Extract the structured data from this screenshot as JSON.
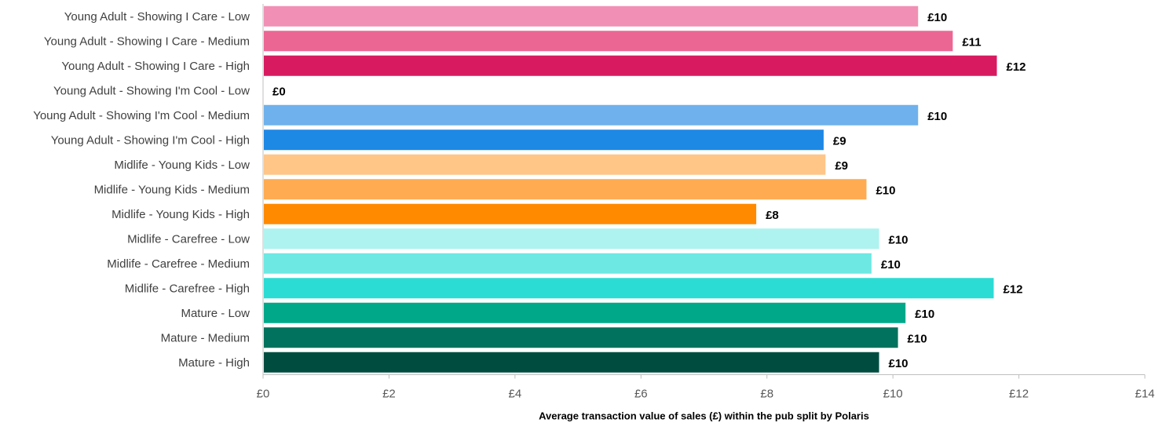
{
  "chart_data": {
    "type": "bar",
    "orientation": "horizontal",
    "categories": [
      "Young Adult - Showing I Care - Low",
      "Young Adult - Showing I Care - Medium",
      "Young Adult - Showing I Care - High",
      "Young Adult - Showing I'm Cool - Low",
      "Young Adult - Showing I'm Cool - Medium",
      "Young Adult - Showing I'm Cool - High",
      "Midlife - Young Kids - Low",
      "Midlife - Young Kids - Medium",
      "Midlife - Young Kids - High",
      "Midlife - Carefree - Low",
      "Midlife - Carefree - Medium",
      "Midlife - Carefree - High",
      "Mature - Low",
      "Mature - Medium",
      "Mature - High"
    ],
    "values": [
      10.4,
      10.95,
      11.65,
      0,
      10.4,
      8.9,
      8.93,
      9.58,
      7.83,
      9.78,
      9.66,
      11.6,
      10.2,
      10.08,
      9.78
    ],
    "data_labels": [
      "£10",
      "£11",
      "£12",
      "£0",
      "£10",
      "£9",
      "£9",
      "£10",
      "£8",
      "£10",
      "£10",
      "£12",
      "£10",
      "£10",
      "£10"
    ],
    "colors": [
      "#F190B4",
      "#EC6693",
      "#D81B60",
      "#D81B60",
      "#6FB1EC",
      "#1E88E5",
      "#FFC688",
      "#FFAB51",
      "#FF8A00",
      "#AEF3EF",
      "#6DE8E2",
      "#2BDCD4",
      "#00A88A",
      "#00725D",
      "#004D40"
    ],
    "xlabel": "Average transaction value of sales (£) within the pub split by Polaris",
    "ylabel": "",
    "xlim": [
      0,
      14
    ],
    "xticks": [
      0,
      2,
      4,
      6,
      8,
      10,
      12,
      14
    ],
    "xtick_labels": [
      "£0",
      "£2",
      "£4",
      "£6",
      "£8",
      "£10",
      "£12",
      "£14"
    ],
    "grid": false,
    "legend": "none"
  }
}
